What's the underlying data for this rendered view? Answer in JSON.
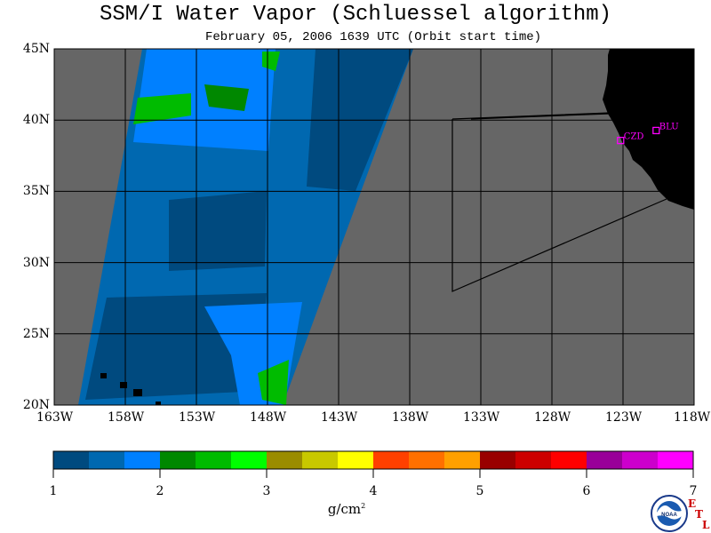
{
  "title": "SSM/I Water Vapor (Schluessel algorithm)",
  "subtitle": "February 05, 2006  1639 UTC  (Orbit start time)",
  "map": {
    "lat_labels": [
      "45N",
      "40N",
      "35N",
      "30N",
      "25N",
      "20N"
    ],
    "lat_values": [
      45,
      40,
      35,
      30,
      25,
      20
    ],
    "lon_labels": [
      "163W",
      "158W",
      "153W",
      "148W",
      "143W",
      "138W",
      "133W",
      "128W",
      "123W",
      "118W"
    ],
    "lon_values": [
      -163,
      -158,
      -153,
      -148,
      -143,
      -138,
      -133,
      -128,
      -123,
      -118
    ],
    "lat_range": [
      20,
      45
    ],
    "lon_range": [
      -163,
      -118
    ],
    "stations": [
      {
        "label": "CZD",
        "lat": 38.6,
        "lon": -123.2
      },
      {
        "label": "BLU",
        "lat": 39.3,
        "lon": -120.7
      }
    ],
    "colors": {
      "no_data": "#666666",
      "land": "#000000",
      "grid": "#000000",
      "station": "#ff00ff"
    }
  },
  "colorbar": {
    "colors": [
      "#004a7f",
      "#0068b0",
      "#0080ff",
      "#008800",
      "#00bb00",
      "#00ff00",
      "#9a8c00",
      "#c8c800",
      "#ffff00",
      "#ff4000",
      "#ff7000",
      "#ffa000",
      "#990000",
      "#cc0000",
      "#ff0000",
      "#990099",
      "#cc00cc",
      "#ff00ff"
    ],
    "tick_labels": [
      "1",
      "2",
      "3",
      "4",
      "5",
      "6",
      "7"
    ],
    "units": "g/cm",
    "units_sup": "2"
  },
  "logo": {
    "text": "NOAA",
    "letters": [
      "E",
      "T",
      "L"
    ]
  }
}
